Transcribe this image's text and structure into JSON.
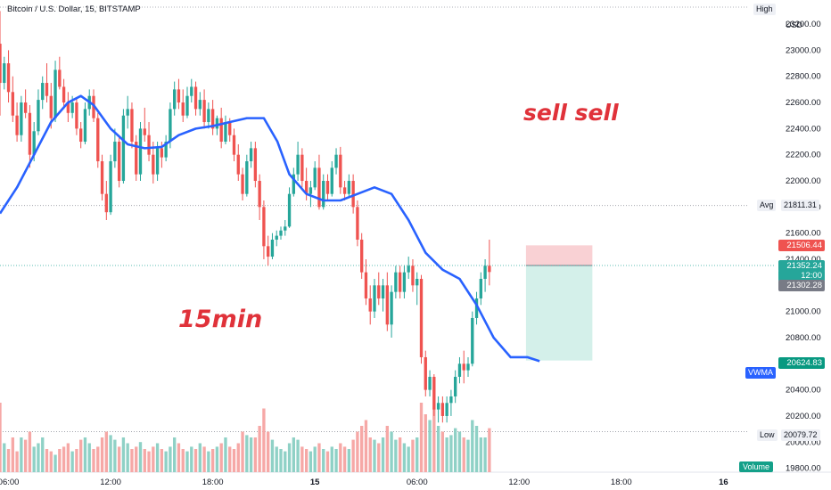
{
  "header": {
    "symbol": "Bitcoin / U.S. Dollar, 15, BITSTAMP",
    "currency": "USD"
  },
  "chart_data": {
    "type": "candlestick",
    "yticks": [
      "23200.00",
      "23000.00",
      "22800.00",
      "22600.00",
      "22400.00",
      "22200.00",
      "22000.00",
      "21800.00",
      "21600.00",
      "21400.00",
      "21200.00",
      "21000.00",
      "20800.00",
      "20600.00",
      "20400.00",
      "20200.00",
      "20000.00",
      "19800.00"
    ],
    "ytick_values": [
      23200,
      23000,
      22800,
      22600,
      22400,
      22200,
      22000,
      21800,
      21600,
      21400,
      21200,
      21000,
      20800,
      20600,
      20400,
      20200,
      20000,
      19800
    ],
    "ylim": [
      19770,
      23330
    ],
    "xticks": [
      "06:00",
      "12:00",
      "18:00",
      "15",
      "06:00",
      "12:00",
      "18:00",
      "16"
    ],
    "xtick_hours": [
      6,
      12,
      18,
      24,
      30,
      36,
      42,
      48
    ],
    "xlim_hours": [
      5.5,
      49.5
    ],
    "first_bar_hour": 5.5,
    "bar_minutes": 15,
    "colors": {
      "up": "#26a69a",
      "down": "#ef5350",
      "vwma": "#2962ff",
      "vol_up": "#8fd1c6",
      "vol_down": "#f6a8a6"
    },
    "ohlc": [
      [
        23050,
        23300,
        22500,
        22750
      ],
      [
        22750,
        22950,
        22700,
        22900
      ],
      [
        22900,
        23000,
        22600,
        22680
      ],
      [
        22680,
        22800,
        22450,
        22500
      ],
      [
        22500,
        22600,
        22300,
        22350
      ],
      [
        22350,
        22650,
        22300,
        22600
      ],
      [
        22600,
        22700,
        22480,
        22520
      ],
      [
        22520,
        22580,
        22100,
        22200
      ],
      [
        22200,
        22450,
        22150,
        22380
      ],
      [
        22380,
        22700,
        22350,
        22620
      ],
      [
        22620,
        22800,
        22550,
        22750
      ],
      [
        22750,
        22900,
        22600,
        22650
      ],
      [
        22650,
        22750,
        22400,
        22480
      ],
      [
        22480,
        22920,
        22450,
        22850
      ],
      [
        22850,
        22950,
        22700,
        22720
      ],
      [
        22720,
        22780,
        22550,
        22600
      ],
      [
        22600,
        22680,
        22450,
        22520
      ],
      [
        22520,
        22650,
        22480,
        22600
      ],
      [
        22600,
        22640,
        22350,
        22400
      ],
      [
        22400,
        22450,
        22250,
        22300
      ],
      [
        22300,
        22600,
        22280,
        22550
      ],
      [
        22550,
        22700,
        22500,
        22650
      ],
      [
        22650,
        22700,
        22450,
        22480
      ],
      [
        22480,
        22520,
        22100,
        22150
      ],
      [
        22150,
        22200,
        21850,
        21900
      ],
      [
        21900,
        22000,
        21700,
        21760
      ],
      [
        21760,
        22200,
        21740,
        22150
      ],
      [
        22150,
        22400,
        22100,
        22300
      ],
      [
        22300,
        22350,
        21950,
        22000
      ],
      [
        22000,
        22550,
        21980,
        22500
      ],
      [
        22500,
        22650,
        22400,
        22550
      ],
      [
        22550,
        22600,
        22250,
        22300
      ],
      [
        22300,
        22350,
        22000,
        22050
      ],
      [
        22050,
        22450,
        22000,
        22400
      ],
      [
        22400,
        22560,
        22300,
        22350
      ],
      [
        22350,
        22450,
        22150,
        22200
      ],
      [
        22200,
        22300,
        21980,
        22050
      ],
      [
        22050,
        22300,
        22000,
        22250
      ],
      [
        22250,
        22300,
        22100,
        22180
      ],
      [
        22180,
        22350,
        22150,
        22300
      ],
      [
        22300,
        22600,
        22250,
        22550
      ],
      [
        22550,
        22760,
        22500,
        22700
      ],
      [
        22700,
        22780,
        22550,
        22600
      ],
      [
        22600,
        22700,
        22450,
        22500
      ],
      [
        22500,
        22720,
        22480,
        22650
      ],
      [
        22650,
        22780,
        22600,
        22720
      ],
      [
        22720,
        22760,
        22500,
        22550
      ],
      [
        22550,
        22680,
        22500,
        22620
      ],
      [
        22620,
        22700,
        22400,
        22450
      ],
      [
        22450,
        22600,
        22400,
        22550
      ],
      [
        22550,
        22620,
        22350,
        22400
      ],
      [
        22400,
        22500,
        22350,
        22480
      ],
      [
        22480,
        22560,
        22250,
        22300
      ],
      [
        22300,
        22500,
        22280,
        22450
      ],
      [
        22450,
        22480,
        22300,
        22350
      ],
      [
        22350,
        22400,
        22150,
        22200
      ],
      [
        22200,
        22280,
        22000,
        22050
      ],
      [
        22050,
        22100,
        21850,
        21900
      ],
      [
        21900,
        22200,
        21880,
        22150
      ],
      [
        22150,
        22300,
        22100,
        22250
      ],
      [
        22250,
        22300,
        21950,
        22000
      ],
      [
        22000,
        22050,
        21700,
        21800
      ],
      [
        21800,
        21850,
        21400,
        21500
      ],
      [
        21500,
        21580,
        21350,
        21420
      ],
      [
        21420,
        21600,
        21400,
        21550
      ],
      [
        21550,
        21620,
        21500,
        21580
      ],
      [
        21580,
        21650,
        21550,
        21620
      ],
      [
        21620,
        21700,
        21580,
        21650
      ],
      [
        21650,
        21950,
        21640,
        21900
      ],
      [
        21900,
        22100,
        21880,
        22050
      ],
      [
        22050,
        22300,
        22000,
        22200
      ],
      [
        22200,
        22250,
        21950,
        22000
      ],
      [
        22000,
        22100,
        21850,
        21900
      ],
      [
        21900,
        22000,
        21800,
        21950
      ],
      [
        21950,
        22150,
        21930,
        22100
      ],
      [
        22100,
        22200,
        21780,
        21800
      ],
      [
        21800,
        22050,
        21780,
        22000
      ],
      [
        22000,
        22050,
        21850,
        21900
      ],
      [
        21900,
        22150,
        21880,
        22100
      ],
      [
        22100,
        22250,
        22050,
        22200
      ],
      [
        22200,
        22260,
        21900,
        21950
      ],
      [
        21950,
        22000,
        21850,
        21900
      ],
      [
        21900,
        22050,
        21880,
        22000
      ],
      [
        22000,
        22050,
        21750,
        21800
      ],
      [
        21800,
        21850,
        21500,
        21550
      ],
      [
        21550,
        21600,
        21250,
        21300
      ],
      [
        21300,
        21400,
        21050,
        21100
      ],
      [
        21100,
        21200,
        20900,
        21000
      ],
      [
        21000,
        21250,
        20950,
        21200
      ],
      [
        21200,
        21300,
        21050,
        21100
      ],
      [
        21100,
        21250,
        21000,
        21200
      ],
      [
        21200,
        21300,
        20850,
        20900
      ],
      [
        20900,
        21200,
        20800,
        21150
      ],
      [
        21150,
        21350,
        21100,
        21300
      ],
      [
        21300,
        21350,
        21100,
        21150
      ],
      [
        21150,
        21350,
        21100,
        21300
      ],
      [
        21300,
        21420,
        21250,
        21350
      ],
      [
        21350,
        21400,
        21150,
        21200
      ],
      [
        21200,
        21300,
        21050,
        21250
      ],
      [
        21250,
        21280,
        20600,
        20650
      ],
      [
        20650,
        20700,
        20350,
        20400
      ],
      [
        20400,
        20550,
        20350,
        20500
      ],
      [
        20500,
        20520,
        20200,
        20250
      ],
      [
        20250,
        20350,
        20150,
        20300
      ],
      [
        20300,
        20350,
        20150,
        20200
      ],
      [
        20200,
        20350,
        20150,
        20300
      ],
      [
        20300,
        20400,
        20200,
        20350
      ],
      [
        20350,
        20550,
        20300,
        20500
      ],
      [
        20500,
        20650,
        20450,
        20600
      ],
      [
        20600,
        20700,
        20450,
        20550
      ],
      [
        20550,
        20650,
        20500,
        20600
      ],
      [
        20600,
        21000,
        20580,
        20950
      ],
      [
        20950,
        21150,
        20900,
        21100
      ],
      [
        21100,
        21300,
        21050,
        21250
      ],
      [
        21250,
        21400,
        21150,
        21350
      ],
      [
        21350,
        21550,
        21200,
        21302.28
      ]
    ],
    "volumes": [
      0.6,
      0.25,
      0.2,
      0.3,
      0.18,
      0.3,
      0.28,
      0.35,
      0.22,
      0.25,
      0.3,
      0.2,
      0.18,
      0.15,
      0.2,
      0.22,
      0.25,
      0.18,
      0.2,
      0.28,
      0.3,
      0.25,
      0.2,
      0.22,
      0.3,
      0.35,
      0.32,
      0.28,
      0.22,
      0.3,
      0.25,
      0.2,
      0.22,
      0.26,
      0.2,
      0.18,
      0.22,
      0.25,
      0.2,
      0.18,
      0.22,
      0.3,
      0.25,
      0.2,
      0.18,
      0.22,
      0.2,
      0.25,
      0.22,
      0.18,
      0.2,
      0.22,
      0.25,
      0.3,
      0.22,
      0.2,
      0.25,
      0.35,
      0.32,
      0.3,
      0.3,
      0.4,
      0.55,
      0.35,
      0.28,
      0.22,
      0.2,
      0.18,
      0.25,
      0.3,
      0.28,
      0.22,
      0.2,
      0.18,
      0.22,
      0.25,
      0.2,
      0.18,
      0.22,
      0.2,
      0.25,
      0.22,
      0.2,
      0.28,
      0.35,
      0.4,
      0.45,
      0.3,
      0.28,
      0.25,
      0.3,
      0.4,
      0.35,
      0.28,
      0.3,
      0.25,
      0.22,
      0.28,
      0.3,
      0.6,
      0.5,
      0.45,
      0.55,
      0.4,
      0.35,
      0.3,
      0.32,
      0.38,
      0.35,
      0.3,
      0.28,
      0.45,
      0.4,
      0.3,
      0.3,
      0.38
    ],
    "vwma": [
      [
        5.5,
        21750
      ],
      [
        6.5,
        21950
      ],
      [
        7.5,
        22200
      ],
      [
        8.5,
        22450
      ],
      [
        9.5,
        22600
      ],
      [
        10.25,
        22650
      ],
      [
        11,
        22580
      ],
      [
        12,
        22400
      ],
      [
        13,
        22280
      ],
      [
        14,
        22250
      ],
      [
        15,
        22260
      ],
      [
        16,
        22350
      ],
      [
        17,
        22400
      ],
      [
        18,
        22420
      ],
      [
        19,
        22450
      ],
      [
        20,
        22480
      ],
      [
        21,
        22480
      ],
      [
        21.8,
        22300
      ],
      [
        22.5,
        22050
      ],
      [
        23.5,
        21900
      ],
      [
        24.5,
        21850
      ],
      [
        25.5,
        21850
      ],
      [
        26.5,
        21900
      ],
      [
        27.5,
        21950
      ],
      [
        28.5,
        21900
      ],
      [
        29.5,
        21700
      ],
      [
        30.5,
        21450
      ],
      [
        31.5,
        21320
      ],
      [
        32.5,
        21250
      ],
      [
        33.5,
        21050
      ],
      [
        34.5,
        20800
      ],
      [
        35.5,
        20650
      ],
      [
        36.5,
        20650
      ],
      [
        37.2,
        20620
      ]
    ],
    "levels": {
      "high": {
        "label": "High",
        "value": 23330
      },
      "avg": {
        "label": "Avg",
        "value": 21811.31
      },
      "low": {
        "label": "Low",
        "value": 20079.72
      }
    },
    "position": {
      "entry": 21352.24,
      "stop": 21506.44,
      "target": 20624.83,
      "start_hour": 36.4,
      "end_hour": 40.3
    },
    "price_labels": {
      "stop": "21506.44",
      "current": "21352.24",
      "countdown": "12:00",
      "prev": "21302.28",
      "target": "20624.83",
      "avg": "21811.31",
      "low": "20079.72"
    },
    "vwma_label": "VWMA",
    "volume_label": "Volume",
    "annotations": {
      "sell": "sell sell",
      "timeframe": "15min"
    }
  }
}
